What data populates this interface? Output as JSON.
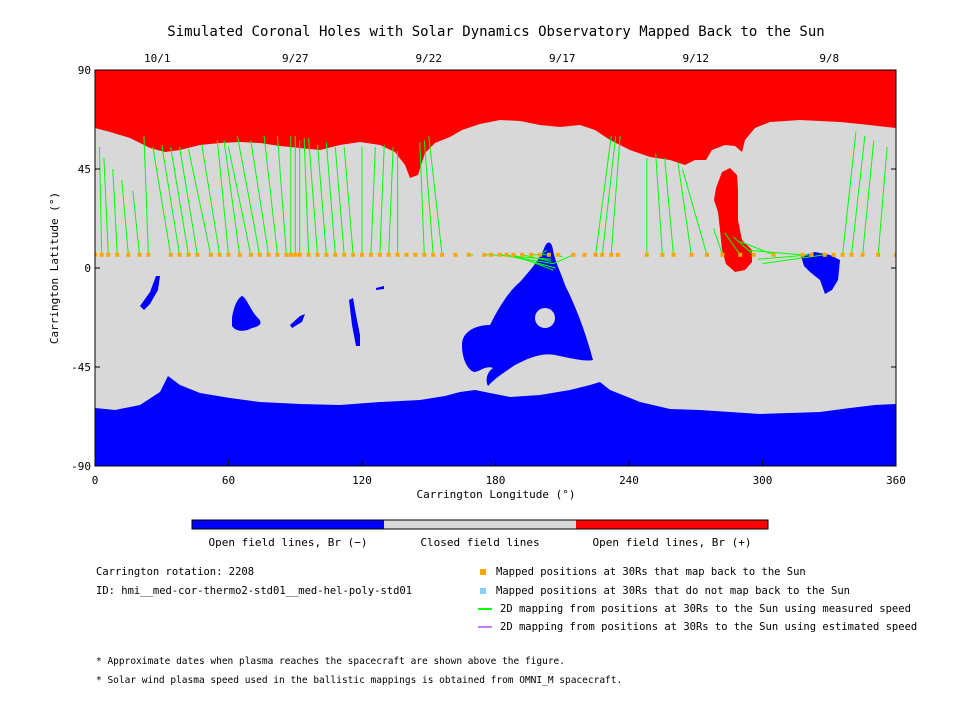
{
  "chart_data": {
    "type": "heatmap",
    "title": "Simulated Coronal Holes with Solar Dynamics Observatory Mapped Back to the Sun",
    "xlabel": "Carrington Longitude (°)",
    "ylabel": "Carrington Latitude (°)",
    "xlim": [
      0,
      360
    ],
    "ylim": [
      -90,
      90
    ],
    "x_ticks": [
      "0",
      "60",
      "120",
      "180",
      "240",
      "300",
      "360"
    ],
    "y_ticks": [
      "90",
      "45",
      "0",
      "-45",
      "-90"
    ],
    "top_axis_dates": [
      {
        "label": "10/1",
        "lon": 28
      },
      {
        "label": "9/27",
        "lon": 90
      },
      {
        "label": "9/22",
        "lon": 150
      },
      {
        "label": "9/17",
        "lon": 210
      },
      {
        "label": "9/12",
        "lon": 270
      },
      {
        "label": "9/8",
        "lon": 330
      }
    ],
    "colorbar": [
      {
        "label": "Open field lines, Br (−)",
        "color": "#0000ff"
      },
      {
        "label": "Closed field lines",
        "color": "#d8d8d8"
      },
      {
        "label": "Open field lines, Br (+)",
        "color": "#ff0000"
      }
    ],
    "mapped_positions_lat": 6,
    "mapped_positions_lon": [
      0,
      3,
      6,
      10,
      15,
      20,
      24,
      34,
      38,
      42,
      46,
      52,
      56,
      60,
      65,
      70,
      74,
      78,
      82,
      86,
      88,
      90,
      92,
      96,
      100,
      104,
      108,
      112,
      116,
      120,
      124,
      128,
      132,
      136,
      140,
      144,
      148,
      152,
      156,
      162,
      168,
      175,
      178,
      182,
      185,
      188,
      192,
      196,
      200,
      204,
      208,
      215,
      220,
      225,
      228,
      232,
      235,
      248,
      255,
      260,
      268,
      275,
      282,
      290,
      296,
      305,
      318,
      322,
      328,
      332,
      336,
      340,
      345,
      352,
      360
    ],
    "mappings_measured_speed": [
      [
        0,
        6,
        0,
        62
      ],
      [
        3,
        6,
        2,
        55
      ],
      [
        6,
        6,
        4,
        50
      ],
      [
        10,
        6,
        8,
        45
      ],
      [
        15,
        6,
        12,
        40
      ],
      [
        20,
        6,
        17,
        35
      ],
      [
        24,
        6,
        22,
        60
      ],
      [
        34,
        6,
        26,
        55
      ],
      [
        38,
        6,
        30,
        56
      ],
      [
        42,
        6,
        34,
        55
      ],
      [
        46,
        6,
        38,
        55
      ],
      [
        52,
        6,
        42,
        54
      ],
      [
        56,
        6,
        48,
        56
      ],
      [
        60,
        6,
        55,
        58
      ],
      [
        65,
        6,
        58,
        58
      ],
      [
        70,
        6,
        60,
        55
      ],
      [
        74,
        6,
        64,
        60
      ],
      [
        78,
        6,
        70,
        58
      ],
      [
        82,
        6,
        76,
        60
      ],
      [
        86,
        6,
        82,
        60
      ],
      [
        88,
        6,
        88,
        60
      ],
      [
        90,
        6,
        90,
        60
      ],
      [
        92,
        6,
        92,
        58
      ],
      [
        96,
        6,
        94,
        59
      ],
      [
        100,
        6,
        96,
        59
      ],
      [
        104,
        6,
        100,
        56
      ],
      [
        108,
        6,
        104,
        57
      ],
      [
        112,
        6,
        108,
        55
      ],
      [
        116,
        6,
        112,
        55
      ],
      [
        120,
        6,
        120,
        55
      ],
      [
        124,
        6,
        126,
        55
      ],
      [
        128,
        6,
        130,
        56
      ],
      [
        132,
        6,
        134,
        55
      ],
      [
        136,
        6,
        136,
        53
      ],
      [
        148,
        6,
        146,
        57
      ],
      [
        152,
        6,
        148,
        58
      ],
      [
        156,
        6,
        150,
        60
      ],
      [
        168,
        6,
        170,
        6
      ],
      [
        175,
        6,
        178,
        6
      ],
      [
        178,
        6,
        205,
        4
      ],
      [
        182,
        6,
        206,
        2
      ],
      [
        185,
        6,
        207,
        0
      ],
      [
        188,
        6,
        206,
        -1
      ],
      [
        192,
        6,
        205,
        3
      ],
      [
        196,
        6,
        204,
        6
      ],
      [
        200,
        6,
        203,
        8
      ],
      [
        208,
        6,
        210,
        5
      ],
      [
        215,
        6,
        206,
        2
      ],
      [
        225,
        6,
        232,
        60
      ],
      [
        228,
        6,
        234,
        60
      ],
      [
        232,
        6,
        236,
        60
      ],
      [
        248,
        6,
        248,
        50
      ],
      [
        255,
        6,
        252,
        52
      ],
      [
        260,
        6,
        256,
        50
      ],
      [
        268,
        6,
        262,
        48
      ],
      [
        275,
        6,
        264,
        45
      ],
      [
        282,
        6,
        278,
        18
      ],
      [
        290,
        6,
        283,
        16
      ],
      [
        296,
        6,
        287,
        14
      ],
      [
        305,
        6,
        290,
        12
      ],
      [
        318,
        6,
        294,
        8
      ],
      [
        322,
        6,
        298,
        4
      ],
      [
        328,
        6,
        300,
        2
      ],
      [
        336,
        6,
        342,
        62
      ],
      [
        340,
        6,
        346,
        60
      ],
      [
        345,
        6,
        350,
        58
      ],
      [
        352,
        6,
        356,
        55
      ],
      [
        360,
        6,
        360,
        50
      ]
    ],
    "info": {
      "carrington_rotation": "Carrington rotation: 2208",
      "model_id": "ID: hmi__med-cor-thermo2-std01__med-hel-poly-std01"
    },
    "legend": [
      {
        "label": "Mapped positions at 30Rs that map back to the Sun",
        "color": "#ffa500",
        "marker": "square"
      },
      {
        "label": "Mapped positions at 30Rs that do not map back to the Sun",
        "color": "#87cefa",
        "marker": "square"
      },
      {
        "label": "2D mapping from positions at 30Rs to the Sun using measured speed",
        "color": "#00ff00",
        "marker": "line"
      },
      {
        "label": "2D mapping from positions at 30Rs to the Sun using estimated speed",
        "color": "#c080ff",
        "marker": "line"
      }
    ],
    "notes": [
      "* Approximate dates when plasma reaches the spacecraft are shown above the figure.",
      "* Solar wind plasma speed used in the ballistic mappings is obtained from OMNI_M spacecraft."
    ],
    "colors": {
      "positive": "#ff0000",
      "negative": "#0000ff",
      "closed": "#d8d8d8",
      "mapped": "#ffa500",
      "measured_line": "#00ff00"
    }
  }
}
